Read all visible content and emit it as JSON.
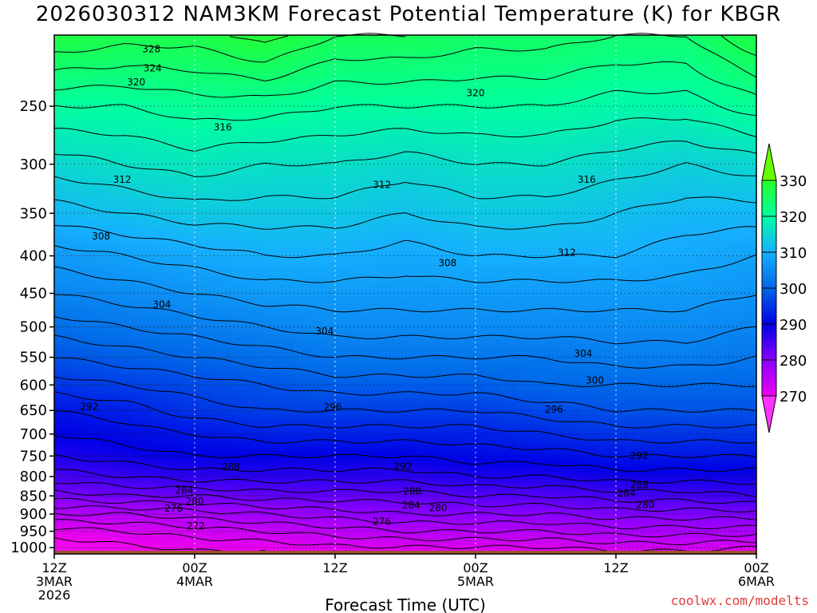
{
  "chart_data": {
    "type": "heatmap",
    "title": "2026030312 NAM3KM Forecast Potential Temperature (K) for KBGR",
    "xlabel": "Forecast Time (UTC)",
    "ylabel": "",
    "credit": "coolwx.com/modelts",
    "x_ticks": [
      {
        "hour": 0,
        "lines": [
          "12Z",
          "3MAR",
          "2026"
        ]
      },
      {
        "hour": 12,
        "lines": [
          "00Z",
          "4MAR"
        ]
      },
      {
        "hour": 24,
        "lines": [
          "12Z"
        ]
      },
      {
        "hour": 36,
        "lines": [
          "00Z",
          "5MAR"
        ]
      },
      {
        "hour": 48,
        "lines": [
          "12Z"
        ]
      },
      {
        "hour": 60,
        "lines": [
          "00Z",
          "6MAR"
        ]
      }
    ],
    "xlim_hours": [
      0,
      60
    ],
    "y_ticks": [
      250,
      300,
      350,
      400,
      450,
      500,
      550,
      600,
      650,
      700,
      750,
      800,
      850,
      900,
      950,
      1000
    ],
    "ylim_hPa": [
      200,
      1020
    ],
    "ground_hPa": 1010,
    "colorbar": {
      "ticks": [
        270,
        280,
        290,
        300,
        310,
        320,
        330
      ],
      "range": [
        260,
        340
      ],
      "extend": "both"
    },
    "color_stops": [
      {
        "k": 262,
        "color": "#ff33ff"
      },
      {
        "k": 270,
        "color": "#ee00ee"
      },
      {
        "k": 280,
        "color": "#8a00ff"
      },
      {
        "k": 290,
        "color": "#0000e6"
      },
      {
        "k": 300,
        "color": "#0068e8"
      },
      {
        "k": 310,
        "color": "#16b0ff"
      },
      {
        "k": 320,
        "color": "#00ffa0"
      },
      {
        "k": 330,
        "color": "#28ff28"
      },
      {
        "k": 336,
        "color": "#66ff00"
      }
    ],
    "profile_times": [
      0,
      6,
      12,
      18,
      24,
      30,
      36,
      42,
      48,
      54,
      60
    ],
    "profile_levels_hPa": [
      1010,
      950,
      900,
      850,
      800,
      750,
      700,
      650,
      600,
      550,
      500,
      450,
      400,
      350,
      300,
      250,
      200
    ],
    "theta_K": [
      [
        268,
        271,
        276,
        281,
        285,
        288,
        290,
        292,
        295,
        298,
        301,
        304,
        307,
        311,
        315,
        320,
        328
      ],
      [
        269,
        272,
        276,
        282,
        286,
        289,
        291,
        293,
        296,
        299,
        302,
        305,
        308,
        312,
        316,
        320,
        327
      ],
      [
        270,
        273,
        277,
        282,
        287,
        290,
        292,
        295,
        297,
        300,
        303,
        306,
        309,
        313,
        317,
        321,
        327
      ],
      [
        270,
        274,
        278,
        283,
        287,
        290,
        293,
        296,
        298,
        301,
        304,
        307,
        310,
        313,
        316,
        321,
        329
      ],
      [
        271,
        275,
        279,
        283,
        287,
        290,
        293,
        296,
        299,
        302,
        305,
        307,
        310,
        313,
        316,
        320,
        326
      ],
      [
        271,
        276,
        280,
        283,
        287,
        290,
        293,
        296,
        299,
        302,
        305,
        307,
        309,
        312,
        315,
        320,
        326
      ],
      [
        271,
        276,
        280,
        284,
        288,
        291,
        293,
        296,
        299,
        302,
        305,
        307,
        310,
        313,
        316,
        320,
        325
      ],
      [
        271,
        276,
        280,
        284,
        288,
        291,
        294,
        297,
        300,
        302,
        305,
        307,
        310,
        313,
        316,
        320,
        325
      ],
      [
        272,
        277,
        281,
        285,
        289,
        292,
        295,
        298,
        300,
        303,
        305,
        307,
        310,
        312,
        315,
        319,
        324
      ],
      [
        272,
        277,
        281,
        285,
        289,
        292,
        295,
        298,
        300,
        303,
        305,
        307,
        309,
        311,
        314,
        319,
        324
      ],
      [
        271,
        277,
        281,
        286,
        289,
        292,
        295,
        298,
        300,
        302,
        304,
        306,
        308,
        311,
        315,
        321,
        328
      ]
    ],
    "contour_labels": [
      {
        "text": "328",
        "hour": 8.3,
        "hPa": 209
      },
      {
        "text": "324",
        "hour": 8.4,
        "hPa": 222
      },
      {
        "text": "320",
        "hour": 7.0,
        "hPa": 232
      },
      {
        "text": "320",
        "hour": 36.0,
        "hPa": 240
      },
      {
        "text": "316",
        "hour": 14.4,
        "hPa": 267
      },
      {
        "text": "316",
        "hour": 45.5,
        "hPa": 315
      },
      {
        "text": "312",
        "hour": 5.8,
        "hPa": 315
      },
      {
        "text": "312",
        "hour": 28.0,
        "hPa": 320
      },
      {
        "text": "312",
        "hour": 43.8,
        "hPa": 396
      },
      {
        "text": "308",
        "hour": 4.0,
        "hPa": 376
      },
      {
        "text": "308",
        "hour": 33.6,
        "hPa": 409
      },
      {
        "text": "304",
        "hour": 9.2,
        "hPa": 466
      },
      {
        "text": "304",
        "hour": 23.1,
        "hPa": 507
      },
      {
        "text": "304",
        "hour": 45.2,
        "hPa": 544
      },
      {
        "text": "300",
        "hour": 46.2,
        "hPa": 591
      },
      {
        "text": "296",
        "hour": 23.8,
        "hPa": 643
      },
      {
        "text": "296",
        "hour": 42.7,
        "hPa": 648
      },
      {
        "text": "292",
        "hour": 3.0,
        "hPa": 642
      },
      {
        "text": "292",
        "hour": 29.8,
        "hPa": 775
      },
      {
        "text": "292",
        "hour": 50.0,
        "hPa": 749
      },
      {
        "text": "288",
        "hour": 15.1,
        "hPa": 776
      },
      {
        "text": "288",
        "hour": 30.6,
        "hPa": 838
      },
      {
        "text": "288",
        "hour": 50.0,
        "hPa": 821
      },
      {
        "text": "284",
        "hour": 11.1,
        "hPa": 836
      },
      {
        "text": "284",
        "hour": 30.5,
        "hPa": 875
      },
      {
        "text": "284",
        "hour": 48.9,
        "hPa": 843
      },
      {
        "text": "280",
        "hour": 12.0,
        "hPa": 864
      },
      {
        "text": "280",
        "hour": 32.8,
        "hPa": 883
      },
      {
        "text": "280",
        "hour": 50.5,
        "hPa": 874
      },
      {
        "text": "276",
        "hour": 10.2,
        "hPa": 884
      },
      {
        "text": "276",
        "hour": 28.0,
        "hPa": 922
      },
      {
        "text": "272",
        "hour": 12.1,
        "hPa": 934
      }
    ]
  }
}
